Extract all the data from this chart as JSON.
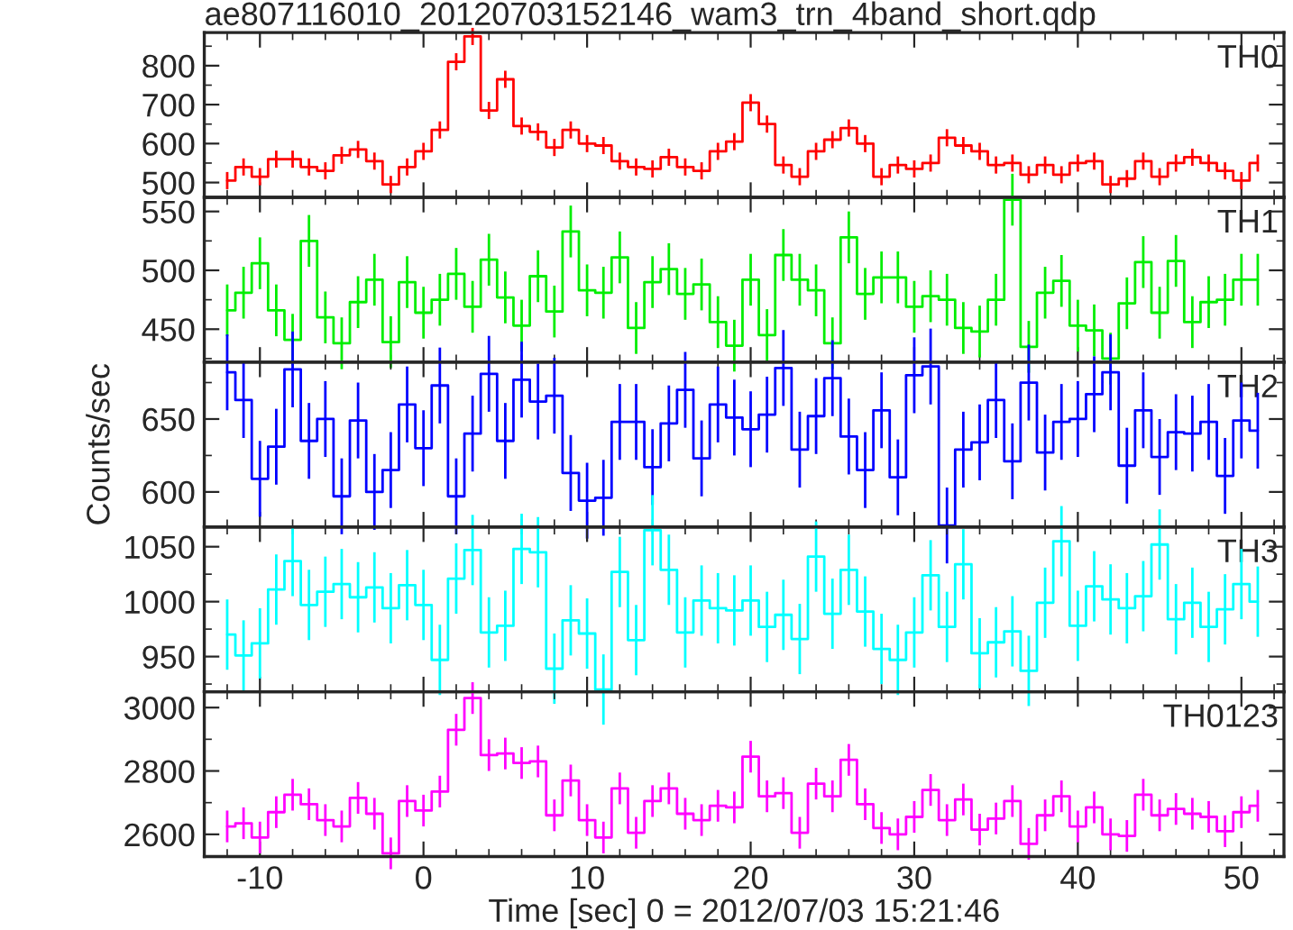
{
  "chart_data": [
    {
      "type": "step",
      "title": "ae807116010_20120703152146_wam3_trn_4band_short.qdp",
      "annotations": [
        "TH0"
      ],
      "color": "#ff0000",
      "x": [
        -12,
        -11,
        -10,
        -9,
        -8,
        -7,
        -6,
        -5,
        -4,
        -3,
        -2,
        -1,
        0,
        1,
        2,
        3,
        4,
        5,
        6,
        7,
        8,
        9,
        10,
        11,
        12,
        13,
        14,
        15,
        16,
        17,
        18,
        19,
        20,
        21,
        22,
        23,
        24,
        25,
        26,
        27,
        28,
        29,
        30,
        31,
        32,
        33,
        34,
        35,
        36,
        37,
        38,
        39,
        40,
        41,
        42,
        43,
        44,
        45,
        46,
        47,
        48,
        49,
        50,
        51
      ],
      "values": [
        505,
        540,
        515,
        560,
        560,
        540,
        530,
        570,
        585,
        555,
        495,
        540,
        580,
        635,
        810,
        875,
        685,
        765,
        645,
        630,
        590,
        635,
        600,
        595,
        555,
        540,
        535,
        565,
        540,
        530,
        580,
        605,
        705,
        650,
        545,
        515,
        580,
        610,
        640,
        600,
        515,
        545,
        535,
        550,
        615,
        595,
        580,
        545,
        550,
        520,
        545,
        520,
        550,
        555,
        495,
        510,
        555,
        515,
        550,
        565,
        550,
        530,
        505,
        550
      ],
      "errors": [
        22,
        22,
        22,
        22,
        22,
        22,
        22,
        22,
        22,
        22,
        22,
        22,
        22,
        22,
        22,
        22,
        22,
        22,
        22,
        22,
        22,
        22,
        22,
        22,
        22,
        22,
        22,
        22,
        22,
        22,
        22,
        22,
        22,
        22,
        22,
        22,
        22,
        22,
        22,
        22,
        22,
        22,
        22,
        22,
        22,
        22,
        22,
        22,
        22,
        22,
        22,
        22,
        22,
        22,
        22,
        22,
        22,
        22,
        22,
        22,
        22,
        22,
        22,
        22
      ],
      "xlim": [
        -13.4,
        52.6
      ],
      "xticks": [
        -10,
        0,
        10,
        20,
        30,
        40,
        50
      ],
      "ylim": [
        462,
        885
      ],
      "yticks": [
        500,
        600,
        700,
        800
      ],
      "tick_labels": "y",
      "grid": false
    },
    {
      "type": "step",
      "annotations": [
        "TH1"
      ],
      "color": "#00ee00",
      "x": [
        -12,
        -11,
        -10,
        -9,
        -8,
        -7,
        -6,
        -5,
        -4,
        -3,
        -2,
        -1,
        0,
        1,
        2,
        3,
        4,
        5,
        6,
        7,
        8,
        9,
        10,
        11,
        12,
        13,
        14,
        15,
        16,
        17,
        18,
        19,
        20,
        21,
        22,
        23,
        24,
        25,
        26,
        27,
        28,
        29,
        30,
        31,
        32,
        33,
        34,
        35,
        36,
        37,
        38,
        39,
        40,
        41,
        42,
        43,
        44,
        45,
        46,
        47,
        48,
        49,
        50,
        51
      ],
      "values": [
        466,
        481,
        506,
        466,
        441,
        525,
        460,
        438,
        473,
        492,
        439,
        490,
        464,
        475,
        497,
        469,
        509,
        477,
        453,
        495,
        465,
        533,
        483,
        481,
        511,
        451,
        490,
        501,
        480,
        488,
        456,
        436,
        492,
        445,
        513,
        492,
        483,
        438,
        528,
        480,
        494,
        494,
        469,
        478,
        475,
        451,
        448,
        475,
        560,
        435,
        481,
        491,
        453,
        449,
        425,
        472,
        507,
        464,
        508,
        456,
        473,
        475,
        492,
        492
      ],
      "errors": [
        22,
        22,
        22,
        22,
        22,
        22,
        22,
        22,
        22,
        22,
        22,
        22,
        22,
        22,
        22,
        22,
        22,
        22,
        22,
        22,
        22,
        22,
        22,
        22,
        22,
        22,
        22,
        22,
        22,
        22,
        22,
        22,
        22,
        22,
        22,
        22,
        22,
        22,
        22,
        22,
        22,
        22,
        22,
        22,
        22,
        22,
        22,
        22,
        22,
        22,
        22,
        22,
        22,
        22,
        22,
        22,
        22,
        22,
        22,
        22,
        22,
        22,
        22,
        22
      ],
      "xlim": [
        -13.4,
        52.6
      ],
      "xticks": [
        -10,
        0,
        10,
        20,
        30,
        40,
        50
      ],
      "ylim": [
        422,
        562
      ],
      "yticks": [
        450,
        500,
        550
      ],
      "tick_labels": "y",
      "grid": false
    },
    {
      "type": "step",
      "annotations": [
        "TH2"
      ],
      "ylabel": "Counts/sec",
      "color": "#0000ff",
      "x": [
        -12,
        -11,
        -10,
        -9,
        -8,
        -7,
        -6,
        -5,
        -4,
        -3,
        -2,
        -1,
        0,
        1,
        2,
        3,
        4,
        5,
        6,
        7,
        8,
        9,
        10,
        11,
        12,
        13,
        14,
        15,
        16,
        17,
        18,
        19,
        20,
        21,
        22,
        23,
        24,
        25,
        26,
        27,
        28,
        29,
        30,
        31,
        32,
        33,
        34,
        35,
        36,
        37,
        38,
        39,
        40,
        41,
        42,
        43,
        44,
        45,
        46,
        47,
        48,
        49,
        50,
        51
      ],
      "values": [
        682,
        663,
        609,
        631,
        684,
        635,
        650,
        597,
        649,
        600,
        615,
        660,
        630,
        673,
        597,
        640,
        681,
        635,
        677,
        662,
        666,
        613,
        594,
        596,
        648,
        648,
        617,
        647,
        670,
        623,
        660,
        651,
        643,
        653,
        685,
        629,
        652,
        678,
        638,
        615,
        656,
        610,
        680,
        686,
        577,
        629,
        634,
        663,
        621,
        675,
        627,
        648,
        650,
        667,
        682,
        618,
        656,
        624,
        641,
        640,
        648,
        611,
        649,
        642
      ],
      "errors": [
        26,
        26,
        26,
        26,
        26,
        26,
        26,
        26,
        26,
        26,
        26,
        26,
        26,
        26,
        26,
        26,
        26,
        26,
        26,
        26,
        26,
        26,
        26,
        26,
        26,
        26,
        26,
        26,
        26,
        26,
        26,
        26,
        26,
        26,
        26,
        26,
        26,
        26,
        26,
        26,
        26,
        26,
        26,
        26,
        26,
        26,
        26,
        26,
        26,
        26,
        26,
        26,
        26,
        26,
        26,
        26,
        26,
        26,
        26,
        26,
        26,
        26,
        26,
        26
      ],
      "xlim": [
        -13.4,
        52.6
      ],
      "xticks": [
        -10,
        0,
        10,
        20,
        30,
        40,
        50
      ],
      "ylim": [
        576,
        689
      ],
      "yticks": [
        600,
        650
      ],
      "tick_labels": "y",
      "grid": false
    },
    {
      "type": "step",
      "annotations": [
        "TH3"
      ],
      "color": "#00ffff",
      "x": [
        -12,
        -11,
        -10,
        -9,
        -8,
        -7,
        -6,
        -5,
        -4,
        -3,
        -2,
        -1,
        0,
        1,
        2,
        3,
        4,
        5,
        6,
        7,
        8,
        9,
        10,
        11,
        12,
        13,
        14,
        15,
        16,
        17,
        18,
        19,
        20,
        21,
        22,
        23,
        24,
        25,
        26,
        27,
        28,
        29,
        30,
        31,
        32,
        33,
        34,
        35,
        36,
        37,
        38,
        39,
        40,
        41,
        42,
        43,
        44,
        45,
        46,
        47,
        48,
        49,
        50,
        51
      ],
      "values": [
        970,
        951,
        962,
        1011,
        1037,
        997,
        1009,
        1016,
        1004,
        1013,
        994,
        1015,
        997,
        947,
        1021,
        1047,
        972,
        978,
        1048,
        1045,
        939,
        983,
        971,
        920,
        1027,
        965,
        1065,
        1029,
        972,
        1001,
        994,
        992,
        1001,
        977,
        988,
        966,
        1041,
        989,
        1029,
        991,
        957,
        947,
        972,
        1024,
        977,
        1034,
        953,
        963,
        973,
        937,
        999,
        1055,
        978,
        1014,
        1002,
        994,
        1005,
        1052,
        984,
        999,
        977,
        993,
        1016,
        1000
      ],
      "errors": [
        32,
        32,
        32,
        32,
        32,
        32,
        32,
        32,
        32,
        32,
        32,
        32,
        32,
        32,
        32,
        32,
        32,
        32,
        32,
        32,
        32,
        32,
        32,
        32,
        32,
        32,
        32,
        32,
        32,
        32,
        32,
        32,
        32,
        32,
        32,
        32,
        32,
        32,
        32,
        32,
        32,
        32,
        32,
        32,
        32,
        32,
        32,
        32,
        32,
        32,
        32,
        32,
        32,
        32,
        32,
        32,
        32,
        32,
        32,
        32,
        32,
        32,
        32,
        32
      ],
      "xlim": [
        -13.4,
        52.6
      ],
      "xticks": [
        -10,
        0,
        10,
        20,
        30,
        40,
        50
      ],
      "ylim": [
        918,
        1068
      ],
      "yticks": [
        950,
        1000,
        1050
      ],
      "tick_labels": "y",
      "grid": false
    },
    {
      "type": "step",
      "annotations": [
        "TH0123"
      ],
      "xlabel": "Time [sec] 0 = 2012/07/03 15:21:46",
      "color": "#ff00ff",
      "x": [
        -12,
        -11,
        -10,
        -9,
        -8,
        -7,
        -6,
        -5,
        -4,
        -3,
        -2,
        -1,
        0,
        1,
        2,
        3,
        4,
        5,
        6,
        7,
        8,
        9,
        10,
        11,
        12,
        13,
        14,
        15,
        16,
        17,
        18,
        19,
        20,
        21,
        22,
        23,
        24,
        25,
        26,
        27,
        28,
        29,
        30,
        31,
        32,
        33,
        34,
        35,
        36,
        37,
        38,
        39,
        40,
        41,
        42,
        43,
        44,
        45,
        46,
        47,
        48,
        49,
        50,
        51
      ],
      "values": [
        2625,
        2635,
        2590,
        2670,
        2725,
        2695,
        2645,
        2625,
        2715,
        2665,
        2540,
        2705,
        2675,
        2735,
        2930,
        3030,
        2850,
        2855,
        2825,
        2830,
        2660,
        2770,
        2645,
        2590,
        2745,
        2605,
        2705,
        2745,
        2665,
        2645,
        2690,
        2685,
        2845,
        2720,
        2730,
        2605,
        2760,
        2720,
        2835,
        2695,
        2620,
        2600,
        2655,
        2740,
        2645,
        2710,
        2615,
        2650,
        2705,
        2570,
        2660,
        2720,
        2625,
        2685,
        2600,
        2595,
        2725,
        2660,
        2680,
        2665,
        2655,
        2610,
        2670,
        2690
      ],
      "errors": [
        50,
        50,
        50,
        50,
        50,
        50,
        50,
        50,
        50,
        50,
        50,
        50,
        50,
        50,
        50,
        50,
        50,
        50,
        50,
        50,
        50,
        50,
        50,
        50,
        50,
        50,
        50,
        50,
        50,
        50,
        50,
        50,
        50,
        50,
        50,
        50,
        50,
        50,
        50,
        50,
        50,
        50,
        50,
        50,
        50,
        50,
        50,
        50,
        50,
        50,
        50,
        50,
        50,
        50,
        50,
        50,
        50,
        50,
        50,
        50,
        50,
        50,
        50,
        50
      ],
      "xlim": [
        -13.4,
        52.6
      ],
      "xticks": [
        -10,
        0,
        10,
        20,
        30,
        40,
        50
      ],
      "ylim": [
        2530,
        3050
      ],
      "yticks": [
        2600,
        2800,
        3000
      ],
      "grid": false
    }
  ]
}
